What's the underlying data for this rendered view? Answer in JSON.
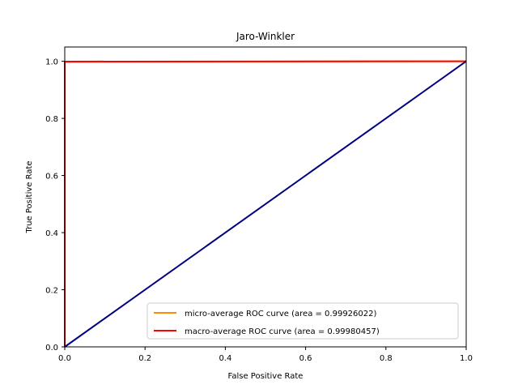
{
  "chart_data": {
    "type": "line",
    "title": "Jaro-Winkler",
    "xlabel": "False Positive Rate",
    "ylabel": "True Positive Rate",
    "xlim": [
      0.0,
      1.0
    ],
    "ylim": [
      0.0,
      1.05
    ],
    "xticks": [
      "0.0",
      "0.2",
      "0.4",
      "0.6",
      "0.8",
      "1.0"
    ],
    "yticks": [
      "0.0",
      "0.2",
      "0.4",
      "0.6",
      "0.8",
      "1.0"
    ],
    "grid": false,
    "legend_position": "lower-right",
    "series": [
      {
        "name": "micro-average ROC curve (area = 0.99926022)",
        "color": "#ff8c00",
        "x": [
          0.0,
          0.0,
          1.0
        ],
        "y": [
          0.0,
          0.998,
          1.0
        ]
      },
      {
        "name": "macro-average ROC curve (area = 0.99980457)",
        "color": "#ff0000",
        "x": [
          0.0,
          0.0,
          1.0
        ],
        "y": [
          0.0,
          0.999,
          1.0
        ]
      }
    ],
    "reference_line": {
      "color": "#000080",
      "x": [
        0.0,
        1.0
      ],
      "y": [
        0.0,
        1.0
      ]
    }
  }
}
